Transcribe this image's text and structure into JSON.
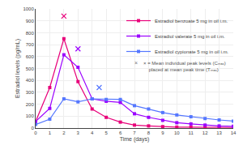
{
  "chart_data": {
    "type": "line",
    "xlabel": "Time (days)",
    "ylabel": "Estradiol levels (pg/mL)",
    "x": [
      0,
      1,
      2,
      3,
      4,
      5,
      6,
      7,
      8,
      9,
      10,
      11,
      12,
      13,
      14
    ],
    "series": [
      {
        "name": "Estradiol benzoate 5 mg in oil i.m.",
        "color": "#e8007a",
        "marker": "square",
        "values": [
          55,
          340,
          750,
          390,
          160,
          90,
          50,
          25,
          18,
          12,
          8,
          7,
          6,
          5,
          5
        ],
        "peak": {
          "x": 2,
          "y": 940
        }
      },
      {
        "name": "Estradiol valerate 5 mg in oil i.m.",
        "color": "#9b00ff",
        "marker": "square",
        "values": [
          55,
          165,
          615,
          510,
          245,
          225,
          215,
          120,
          90,
          65,
          45,
          35,
          25,
          18,
          15
        ],
        "peak": {
          "x": 3,
          "y": 665
        }
      },
      {
        "name": "Estradiol cypionate 5 mg in oil i.m.",
        "color": "#5577ff",
        "marker": "square",
        "values": [
          30,
          75,
          245,
          220,
          245,
          240,
          240,
          188,
          160,
          130,
          110,
          95,
          80,
          68,
          58
        ],
        "peak": {
          "x": 4.5,
          "y": 340
        }
      }
    ],
    "xlim": [
      0,
      14
    ],
    "ylim": [
      0,
      1000
    ],
    "xticks": [
      0,
      1,
      2,
      3,
      4,
      5,
      6,
      7,
      8,
      9,
      10,
      11,
      12,
      13,
      14
    ],
    "yticks": [
      0,
      100,
      200,
      300,
      400,
      500,
      600,
      700,
      800,
      900,
      1000
    ],
    "grid": true,
    "legend": "upper right",
    "annotations": [
      "×",
      "× = Mean individual peak levels (Cₘₐₓ)\n    placed at mean peak time (Tₘₐₓ)"
    ]
  }
}
